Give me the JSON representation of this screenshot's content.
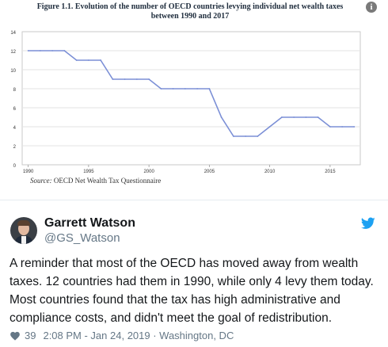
{
  "figure": {
    "title_line1": "Figure 1.1. Evolution of the number of OECD countries levying individual net wealth taxes",
    "title_line2": "between 1990 and 2017",
    "source_label": "Source:",
    "source_text": " OECD Net Wealth Tax Questionnaire",
    "info_glyph": "i"
  },
  "chart_data": {
    "type": "line",
    "title": "Figure 1.1. Evolution of the number of OECD countries levying individual net wealth taxes between 1990 and 2017",
    "xlabel": "",
    "ylabel": "",
    "xlim": [
      1989.5,
      2017.5
    ],
    "ylim": [
      0,
      14
    ],
    "yticks": [
      0,
      2,
      4,
      6,
      8,
      10,
      12,
      14
    ],
    "xticks": [
      1990,
      1995,
      2000,
      2005,
      2010,
      2015
    ],
    "grid": "horizontal",
    "color": "#7b8fd6",
    "x": [
      1990,
      1991,
      1992,
      1993,
      1994,
      1995,
      1996,
      1997,
      1998,
      1999,
      2000,
      2001,
      2002,
      2003,
      2004,
      2005,
      2006,
      2007,
      2008,
      2009,
      2010,
      2011,
      2012,
      2013,
      2014,
      2015,
      2016,
      2017
    ],
    "values": [
      12,
      12,
      12,
      12,
      11,
      11,
      11,
      9,
      9,
      9,
      9,
      8,
      8,
      8,
      8,
      8,
      5,
      3,
      3,
      3,
      4,
      5,
      5,
      5,
      5,
      4,
      4,
      4
    ]
  },
  "tweet": {
    "name": "Garrett Watson",
    "handle": "@GS_Watson",
    "text": "A reminder that most of the OECD has moved away from wealth taxes. 12 countries had them in 1990, while only 4 levy them today. Most countries found that the tax has high administrative and compliance costs, and didn't meet the goal of redistribution.",
    "likes": "39",
    "timestamp": "2:08 PM - Jan 24, 2019 · Washington, DC",
    "accent": "#1da1f2"
  }
}
